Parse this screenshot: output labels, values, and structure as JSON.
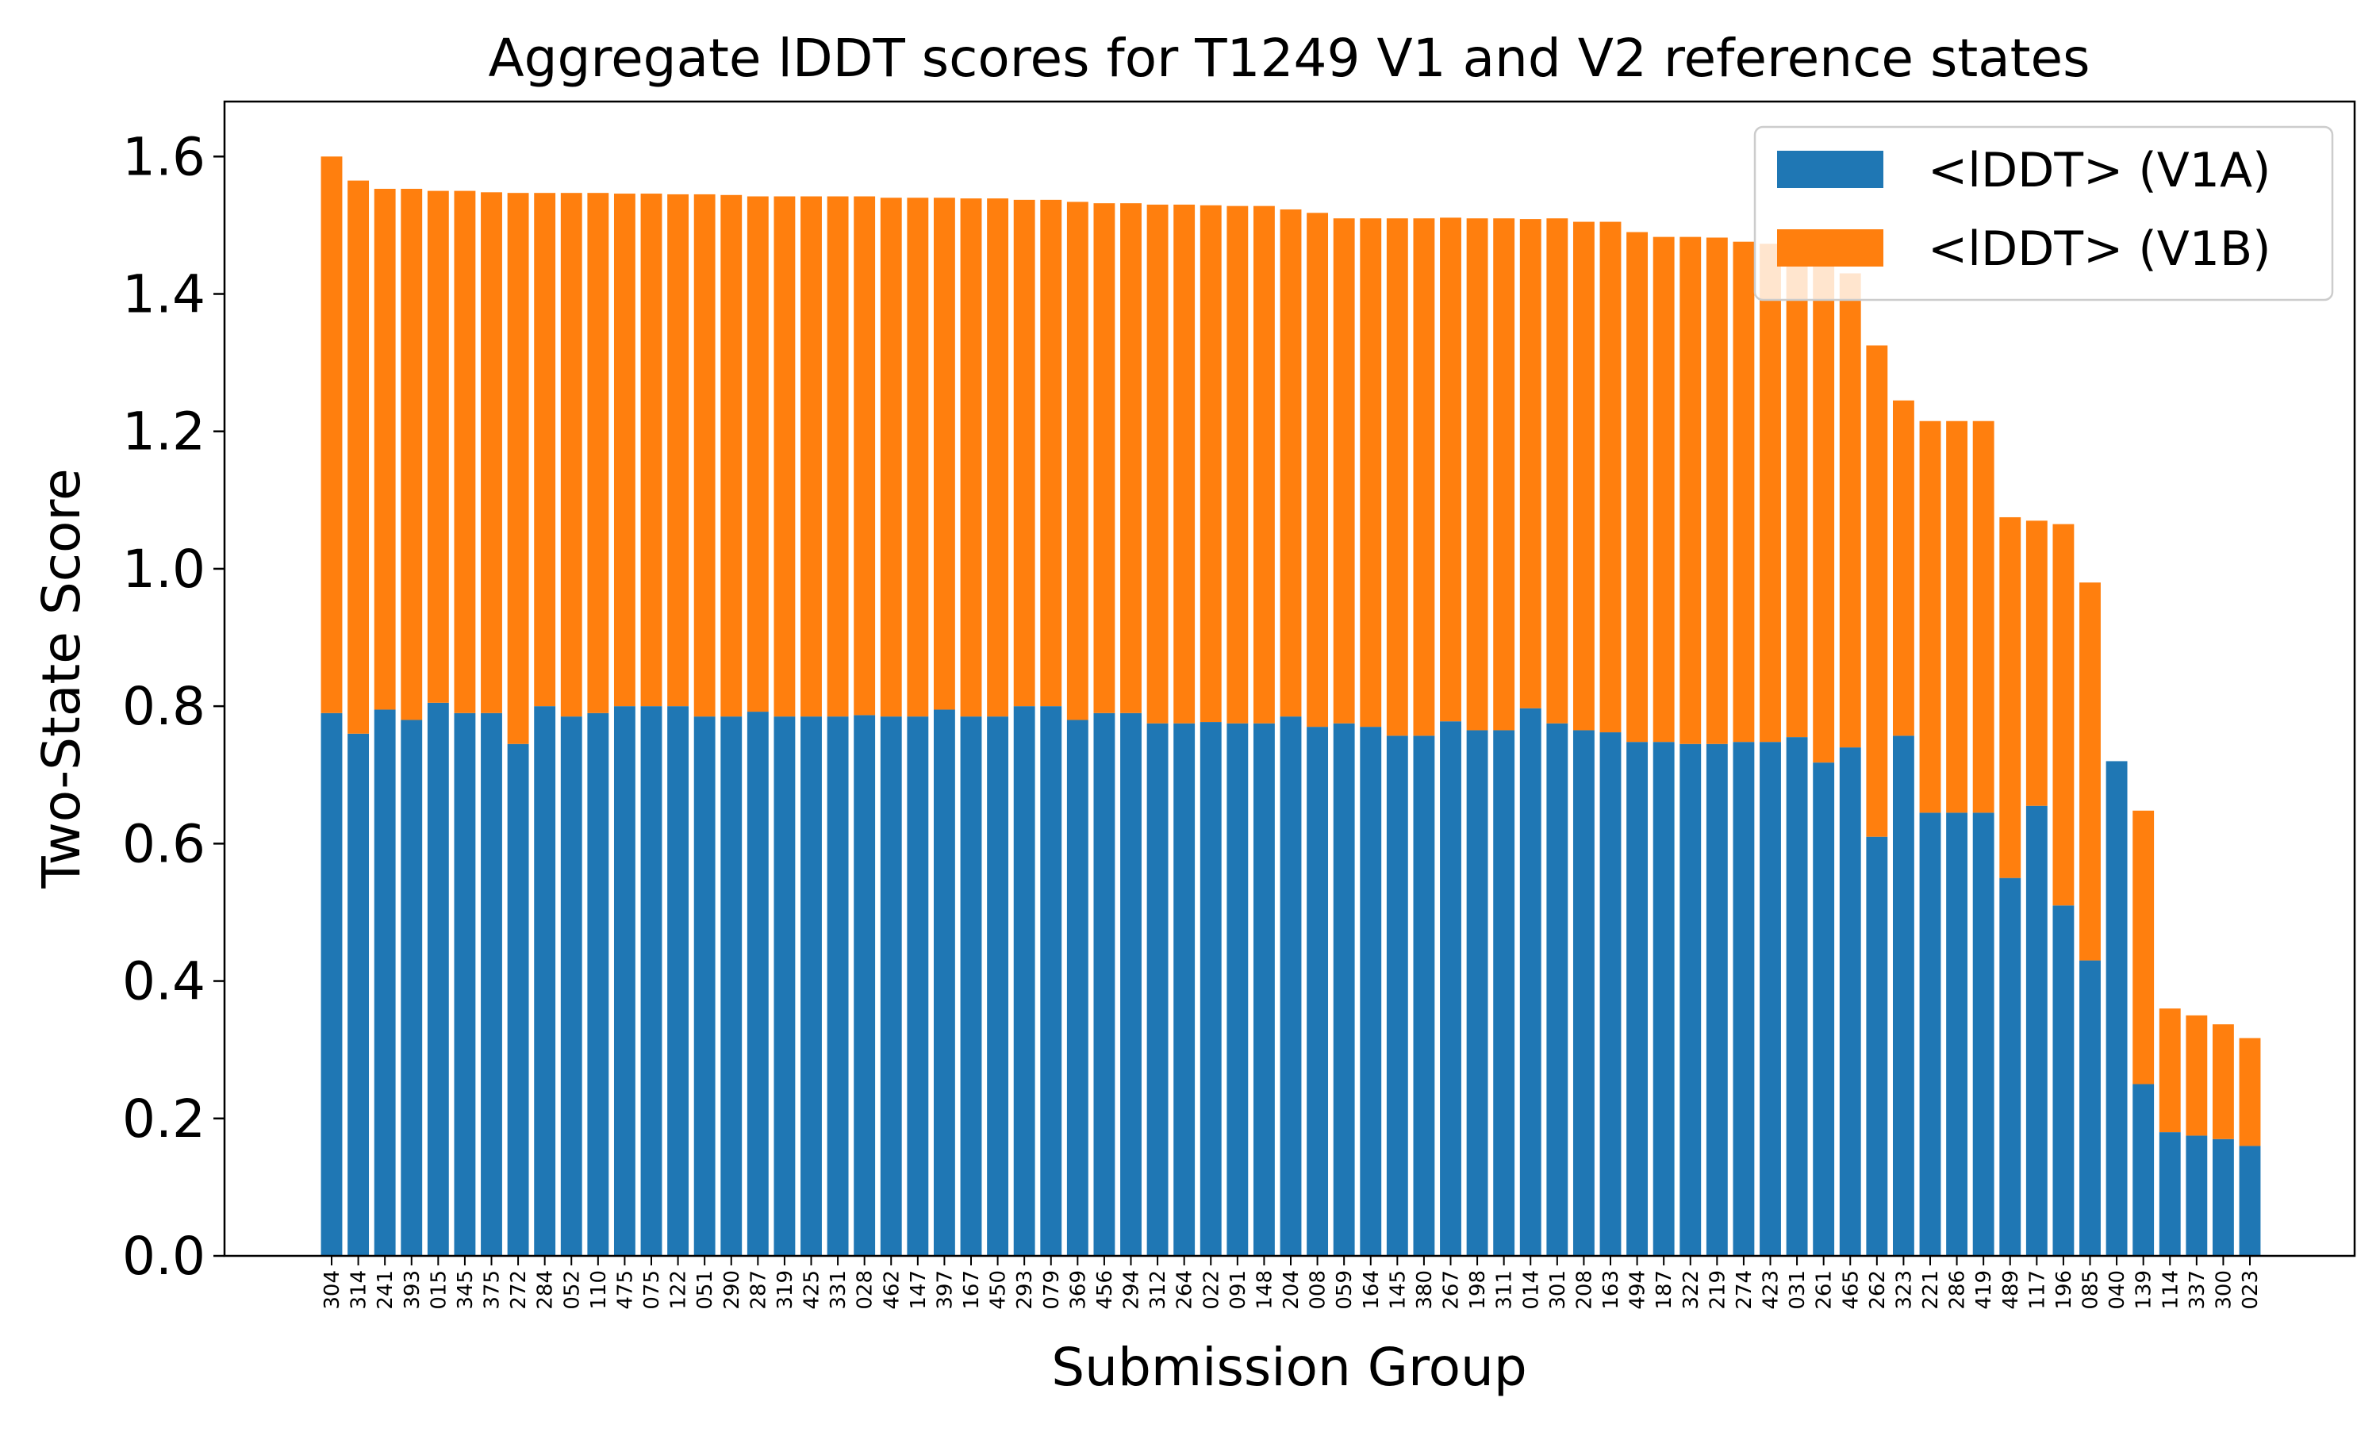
{
  "chart_data": {
    "type": "bar",
    "stacked": true,
    "title": "Aggregate lDDT scores for T1249 V1 and V2 reference states",
    "xlabel": "Submission Group",
    "ylabel": "Two-State Score",
    "ylim": [
      0,
      1.68
    ],
    "yticks": [
      "0.0",
      "0.2",
      "0.4",
      "0.6",
      "0.8",
      "1.0",
      "1.2",
      "1.4",
      "1.6"
    ],
    "grid": false,
    "legend_position": "top-right",
    "categories": [
      "304",
      "314",
      "241",
      "393",
      "015",
      "345",
      "375",
      "272",
      "284",
      "052",
      "110",
      "475",
      "075",
      "122",
      "051",
      "290",
      "287",
      "319",
      "425",
      "331",
      "028",
      "462",
      "147",
      "397",
      "167",
      "450",
      "293",
      "079",
      "369",
      "456",
      "294",
      "312",
      "264",
      "022",
      "091",
      "148",
      "204",
      "008",
      "059",
      "164",
      "145",
      "380",
      "267",
      "198",
      "311",
      "014",
      "301",
      "208",
      "163",
      "494",
      "187",
      "322",
      "219",
      "274",
      "423",
      "031",
      "261",
      "465",
      "262",
      "323",
      "221",
      "286",
      "419",
      "489",
      "117",
      "196",
      "085",
      "040",
      "139",
      "114",
      "337",
      "300",
      "023"
    ],
    "series": [
      {
        "name": "<lDDT> (V1A)",
        "color": "#1f77b4",
        "values": [
          0.79,
          0.76,
          0.795,
          0.78,
          0.805,
          0.79,
          0.79,
          0.745,
          0.8,
          0.785,
          0.79,
          0.8,
          0.8,
          0.8,
          0.785,
          0.785,
          0.792,
          0.785,
          0.785,
          0.785,
          0.787,
          0.785,
          0.785,
          0.795,
          0.785,
          0.785,
          0.8,
          0.8,
          0.78,
          0.79,
          0.79,
          0.775,
          0.775,
          0.777,
          0.775,
          0.775,
          0.785,
          0.77,
          0.775,
          0.77,
          0.757,
          0.757,
          0.778,
          0.765,
          0.765,
          0.797,
          0.775,
          0.765,
          0.762,
          0.748,
          0.748,
          0.745,
          0.745,
          0.748,
          0.748,
          0.755,
          0.718,
          0.74,
          0.61,
          0.757,
          0.645,
          0.645,
          0.645,
          0.55,
          0.655,
          0.51,
          0.43,
          0.72,
          0.25,
          0.18,
          0.175,
          0.17,
          0.16
        ]
      },
      {
        "name": "<lDDT> (V1B)",
        "color": "#ff7f0e",
        "values": [
          0.81,
          0.805,
          0.758,
          0.773,
          0.745,
          0.76,
          0.758,
          0.802,
          0.747,
          0.762,
          0.757,
          0.746,
          0.746,
          0.745,
          0.76,
          0.759,
          0.75,
          0.757,
          0.757,
          0.757,
          0.755,
          0.755,
          0.755,
          0.745,
          0.754,
          0.754,
          0.737,
          0.737,
          0.754,
          0.742,
          0.742,
          0.755,
          0.755,
          0.752,
          0.753,
          0.753,
          0.738,
          0.748,
          0.735,
          0.74,
          0.753,
          0.753,
          0.733,
          0.745,
          0.745,
          0.712,
          0.735,
          0.74,
          0.743,
          0.742,
          0.735,
          0.738,
          0.737,
          0.728,
          0.725,
          0.702,
          0.735,
          0.69,
          0.715,
          0.488,
          0.57,
          0.57,
          0.57,
          0.525,
          0.415,
          0.555,
          0.55,
          0.0,
          0.398,
          0.18,
          0.175,
          0.167,
          0.157
        ]
      }
    ]
  }
}
